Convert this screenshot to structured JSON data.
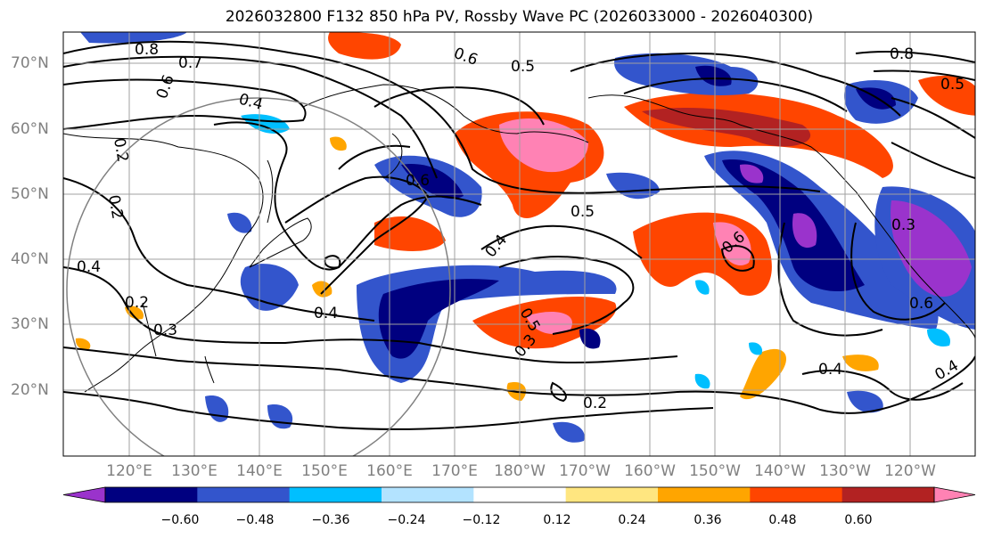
{
  "title": "2026032800 F132 850 hPa PV, Rossby Wave PC (2026033000 - 2026040300)",
  "lat_labels": [
    "70°N",
    "60°N",
    "50°N",
    "40°N",
    "30°N",
    "20°N"
  ],
  "lon_labels": [
    "120°E",
    "130°E",
    "140°E",
    "150°E",
    "160°E",
    "170°E",
    "180°W",
    "170°W",
    "160°W",
    "150°W",
    "140°W",
    "130°W",
    "120°W"
  ],
  "colorbar": {
    "ticks": [
      "−0.60",
      "−0.48",
      "−0.36",
      "−0.24",
      "−0.12",
      "0.12",
      "0.24",
      "0.36",
      "0.48",
      "0.60"
    ],
    "colors": [
      "#9a33cc",
      "#000080",
      "#3355cc",
      "#00bfff",
      "#b3e3ff",
      "#ffffff",
      "#ffe680",
      "#ffa500",
      "#ff4500",
      "#b22222",
      "#ff82b4"
    ]
  },
  "contour_labels": [
    "0.8",
    "0.7",
    "0.6",
    "0.6",
    "0.5",
    "0.4",
    "0.2",
    "0.2",
    "0.4",
    "0.2",
    "0.3",
    "0.4",
    "0.6",
    "0.5",
    "0.6",
    "0.8",
    "0.5",
    "0.4",
    "0.3",
    "0.6",
    "0.4",
    "0.4",
    "0.2",
    "0.5",
    "0.3"
  ]
}
